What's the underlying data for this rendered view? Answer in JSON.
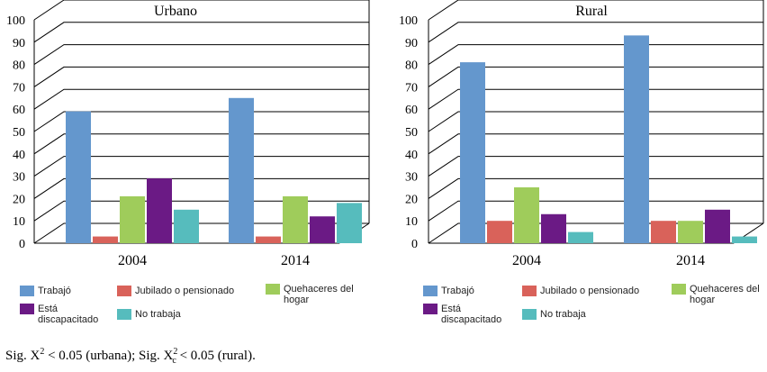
{
  "chart_data": [
    {
      "type": "bar",
      "title": "Urbano",
      "categories": [
        "2004",
        "2014"
      ],
      "ylim": [
        0,
        100
      ],
      "yticks": [
        0,
        10,
        20,
        30,
        40,
        50,
        60,
        70,
        80,
        90,
        100
      ],
      "series": [
        {
          "name": "Trabajó",
          "values": [
            59,
            65
          ]
        },
        {
          "name": "Jubilado o pensionado",
          "values": [
            3,
            3
          ]
        },
        {
          "name": "Quehaceres del hogar",
          "values": [
            21,
            21
          ]
        },
        {
          "name": "Está discapacitado",
          "values": [
            29,
            12
          ]
        },
        {
          "name": "No trabaja",
          "values": [
            15,
            18
          ]
        }
      ]
    },
    {
      "type": "bar",
      "title": "Rural",
      "categories": [
        "2004",
        "2014"
      ],
      "ylim": [
        0,
        100
      ],
      "yticks": [
        0,
        10,
        20,
        30,
        40,
        50,
        60,
        70,
        80,
        90,
        100
      ],
      "series": [
        {
          "name": "Trabajó",
          "values": [
            81,
            93
          ]
        },
        {
          "name": "Jubilado o pensionado",
          "values": [
            10,
            10
          ]
        },
        {
          "name": "Quehaceres del hogar",
          "values": [
            25,
            10
          ]
        },
        {
          "name": "Está discapacitado",
          "values": [
            13,
            15
          ]
        },
        {
          "name": "No trabaja",
          "values": [
            5,
            3
          ]
        }
      ]
    }
  ],
  "colors": [
    "#6497cd",
    "#d9625a",
    "#9fcc5b",
    "#6b1a85",
    "#56bcbd"
  ],
  "legend": {
    "items": [
      {
        "line1": "Trabajó",
        "line2": ""
      },
      {
        "line1": "Jubilado o pensionado",
        "line2": ""
      },
      {
        "line1": "Quehaceres del",
        "line2": "hogar"
      },
      {
        "line1": "Está",
        "line2": "discapacitado"
      },
      {
        "line1": "No trabaja",
        "line2": ""
      }
    ]
  },
  "footnote": {
    "part1": "Sig. X",
    "sup1": "2",
    "part2": " < 0.05 (urbana); Sig. X",
    "sup2": "2",
    "sub2": "c",
    "part3": " < 0.05 (rural)."
  }
}
